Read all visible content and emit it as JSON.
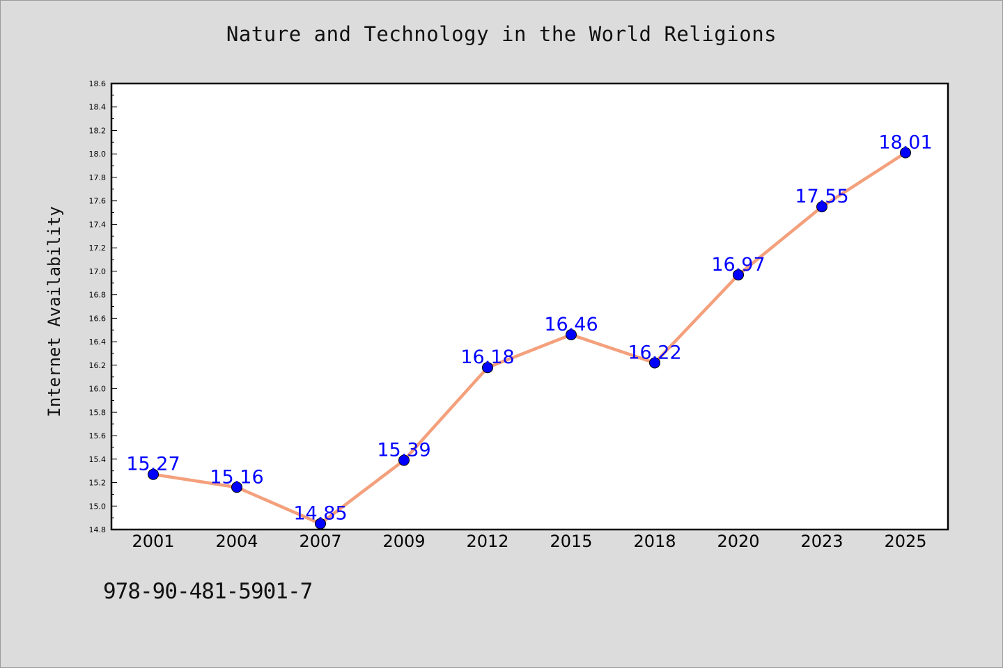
{
  "title": "Nature and Technology in the World Religions",
  "footer_code": "978-90-481-5901-7",
  "colors": {
    "background": "#dcdcdc",
    "plot_background": "#ffffff",
    "line": "#f4a07c",
    "marker": "#0000ff",
    "data_label": "#0000ff"
  },
  "chart_data": {
    "type": "line",
    "title": "Nature and Technology in the World Religions",
    "xlabel": "",
    "ylabel": "Internet Availability",
    "categories": [
      "2001",
      "2004",
      "2007",
      "2009",
      "2012",
      "2015",
      "2018",
      "2020",
      "2023",
      "2025"
    ],
    "values": [
      15.27,
      15.16,
      14.85,
      15.39,
      16.18,
      16.46,
      16.22,
      16.97,
      17.55,
      18.01
    ],
    "data_labels": [
      "15.27",
      "15.16",
      "14.85",
      "15.39",
      "16.18",
      "16.46",
      "16.22",
      "16.97",
      "17.55",
      "18.01"
    ],
    "ylim": [
      14.8,
      18.6
    ],
    "yticks": [
      "14.8",
      "15.0",
      "15.2",
      "15.4",
      "15.6",
      "15.8",
      "16.0",
      "16.2",
      "16.4",
      "16.6",
      "16.8",
      "17.0",
      "17.2",
      "17.4",
      "17.6",
      "17.8",
      "18.0",
      "18.2",
      "18.4",
      "18.6"
    ],
    "grid": false,
    "legend": "none",
    "marker": "circle"
  }
}
